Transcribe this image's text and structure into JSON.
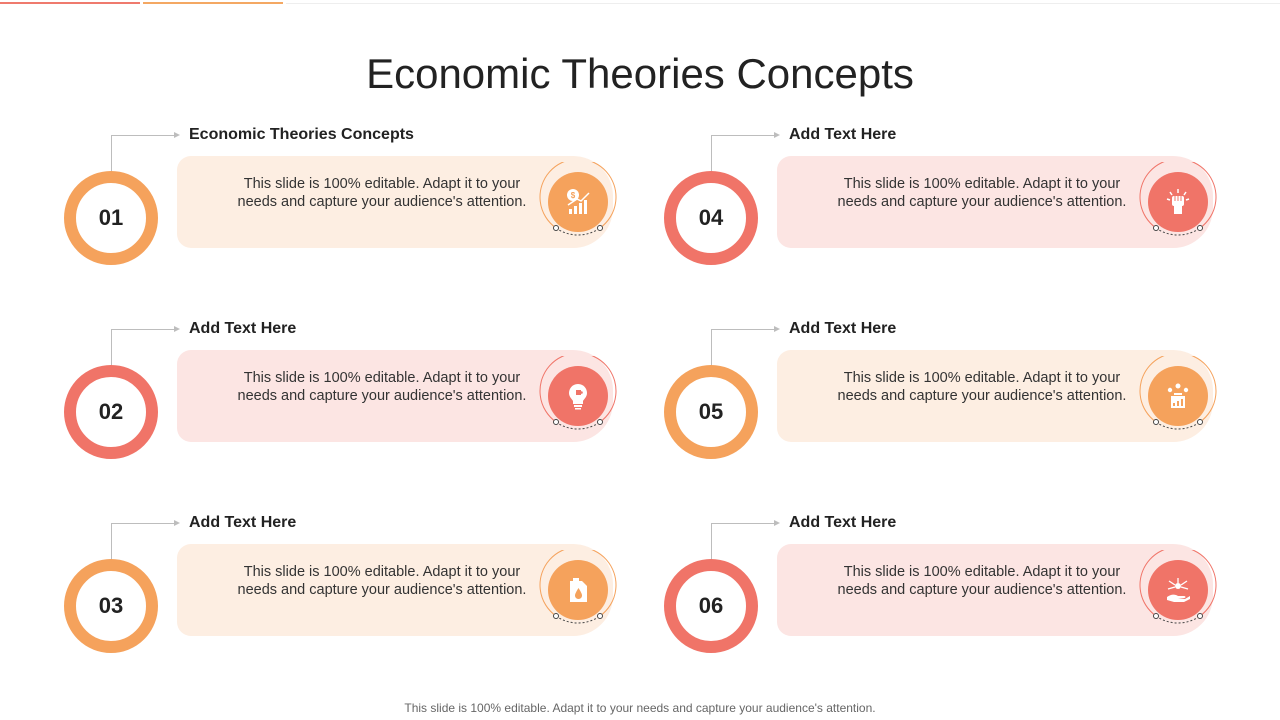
{
  "title": "Economic Theories Concepts",
  "footer": "This slide is 100% editable. Adapt it to your needs and capture your audience's attention.",
  "colors": {
    "orange": "#f5a25c",
    "red": "#f07468",
    "orange_light": "#fdeee2",
    "red_light": "#fce5e3"
  },
  "items": [
    {
      "number": "01",
      "heading": "Economic Theories Concepts",
      "description": "This slide is 100% editable. Adapt it to your needs and capture your audience's attention.",
      "icon": "dollar-growth-chart-icon"
    },
    {
      "number": "02",
      "heading": "Add Text Here",
      "description": "This slide is 100% editable. Adapt it to your needs and capture your audience's attention.",
      "icon": "lightbulb-puzzle-icon"
    },
    {
      "number": "03",
      "heading": "Add Text Here",
      "description": "This slide is 100% editable. Adapt it to your needs and capture your audience's attention.",
      "icon": "fuel-jerrycan-icon"
    },
    {
      "number": "04",
      "heading": "Add Text Here",
      "description": "This slide is 100% editable. Adapt it to your needs and capture your audience's attention.",
      "icon": "raised-fist-icon"
    },
    {
      "number": "05",
      "heading": "Add Text Here",
      "description": "This slide is 100% editable. Adapt it to your needs and capture your audience's attention.",
      "icon": "team-growth-chart-icon"
    },
    {
      "number": "06",
      "heading": "Add Text Here",
      "description": "This slide is 100% editable. Adapt it to your needs and capture your audience's attention.",
      "icon": "hand-network-icon"
    }
  ]
}
